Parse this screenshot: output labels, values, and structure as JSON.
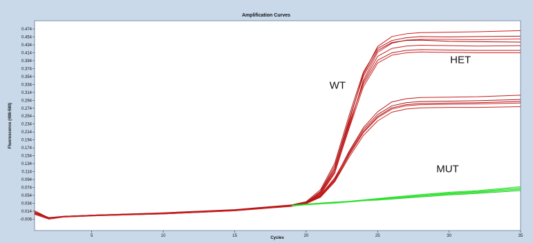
{
  "chart_data": {
    "type": "line",
    "title": "Amplification Curves",
    "xlabel": "Cycles",
    "ylabel": "Fluorescence (498-580)",
    "xlim": [
      1,
      35
    ],
    "ylim": [
      -0.035,
      0.495
    ],
    "x_ticks": [
      5,
      10,
      15,
      20,
      25,
      30,
      35
    ],
    "y_ticks": [
      "-0.006",
      "0.014",
      "0.034",
      "0.054",
      "0.074",
      "0.094",
      "0.114",
      "0.134",
      "0.154",
      "0.174",
      "0.194",
      "0.214",
      "0.234",
      "0.254",
      "0.274",
      "0.294",
      "0.314",
      "0.334",
      "0.354",
      "0.374",
      "0.394",
      "0.414",
      "0.434",
      "0.454",
      "0.474"
    ],
    "grid": false,
    "legend": "none",
    "annotations": [
      {
        "text": "WT",
        "x": 22.2,
        "y": 0.323
      },
      {
        "text": "HET",
        "x": 30.8,
        "y": 0.388
      },
      {
        "text": "MUT",
        "x": 29.9,
        "y": 0.112
      }
    ],
    "series": [
      {
        "group": "WT",
        "color": "#cc1a1a",
        "values": [
          [
            1,
            0.008
          ],
          [
            2,
            -0.004
          ],
          [
            3,
            0.0
          ],
          [
            5,
            0.003
          ],
          [
            10,
            0.008
          ],
          [
            15,
            0.016
          ],
          [
            19,
            0.028
          ],
          [
            20,
            0.034
          ],
          [
            21,
            0.06
          ],
          [
            22,
            0.12
          ],
          [
            23,
            0.24
          ],
          [
            24,
            0.36
          ],
          [
            25,
            0.43
          ],
          [
            26,
            0.455
          ],
          [
            27,
            0.462
          ],
          [
            28,
            0.465
          ],
          [
            30,
            0.466
          ],
          [
            32,
            0.467
          ],
          [
            35,
            0.47
          ]
        ]
      },
      {
        "group": "WT",
        "color": "#b31212",
        "values": [
          [
            1,
            0.012
          ],
          [
            2,
            -0.002
          ],
          [
            3,
            0.001
          ],
          [
            5,
            0.004
          ],
          [
            10,
            0.01
          ],
          [
            15,
            0.018
          ],
          [
            19,
            0.03
          ],
          [
            20,
            0.038
          ],
          [
            21,
            0.068
          ],
          [
            22,
            0.135
          ],
          [
            23,
            0.255
          ],
          [
            24,
            0.365
          ],
          [
            25,
            0.425
          ],
          [
            26,
            0.445
          ],
          [
            27,
            0.452
          ],
          [
            28,
            0.455
          ],
          [
            30,
            0.454
          ],
          [
            32,
            0.455
          ],
          [
            35,
            0.456
          ]
        ]
      },
      {
        "group": "WT",
        "color": "#d42a2a",
        "values": [
          [
            1,
            0.006
          ],
          [
            2,
            -0.006
          ],
          [
            3,
            -0.001
          ],
          [
            5,
            0.002
          ],
          [
            10,
            0.007
          ],
          [
            15,
            0.015
          ],
          [
            19,
            0.026
          ],
          [
            20,
            0.032
          ],
          [
            21,
            0.055
          ],
          [
            22,
            0.11
          ],
          [
            23,
            0.225
          ],
          [
            24,
            0.345
          ],
          [
            25,
            0.415
          ],
          [
            26,
            0.438
          ],
          [
            27,
            0.446
          ],
          [
            28,
            0.448
          ],
          [
            30,
            0.448
          ],
          [
            32,
            0.447
          ],
          [
            35,
            0.449
          ]
        ]
      },
      {
        "group": "WT",
        "color": "#a01010",
        "values": [
          [
            1,
            0.015
          ],
          [
            2,
            -0.003
          ],
          [
            3,
            0.0
          ],
          [
            5,
            0.003
          ],
          [
            10,
            0.009
          ],
          [
            15,
            0.017
          ],
          [
            19,
            0.029
          ],
          [
            20,
            0.036
          ],
          [
            21,
            0.064
          ],
          [
            22,
            0.128
          ],
          [
            23,
            0.245
          ],
          [
            24,
            0.355
          ],
          [
            25,
            0.42
          ],
          [
            26,
            0.44
          ],
          [
            27,
            0.445
          ],
          [
            28,
            0.446
          ],
          [
            30,
            0.443
          ],
          [
            32,
            0.442
          ],
          [
            35,
            0.441
          ]
        ]
      },
      {
        "group": "WT",
        "color": "#c41f1f",
        "values": [
          [
            1,
            0.01
          ],
          [
            2,
            -0.005
          ],
          [
            3,
            0.0
          ],
          [
            5,
            0.003
          ],
          [
            10,
            0.008
          ],
          [
            15,
            0.016
          ],
          [
            19,
            0.027
          ],
          [
            20,
            0.033
          ],
          [
            21,
            0.058
          ],
          [
            22,
            0.115
          ],
          [
            23,
            0.23
          ],
          [
            24,
            0.34
          ],
          [
            25,
            0.405
          ],
          [
            26,
            0.425
          ],
          [
            27,
            0.431
          ],
          [
            28,
            0.433
          ],
          [
            30,
            0.432
          ],
          [
            32,
            0.431
          ],
          [
            35,
            0.432
          ]
        ]
      },
      {
        "group": "WT",
        "color": "#b81818",
        "values": [
          [
            1,
            0.009
          ],
          [
            2,
            -0.004
          ],
          [
            3,
            0.001
          ],
          [
            5,
            0.004
          ],
          [
            10,
            0.009
          ],
          [
            15,
            0.017
          ],
          [
            19,
            0.028
          ],
          [
            20,
            0.035
          ],
          [
            21,
            0.062
          ],
          [
            22,
            0.122
          ],
          [
            23,
            0.235
          ],
          [
            24,
            0.335
          ],
          [
            25,
            0.395
          ],
          [
            26,
            0.414
          ],
          [
            27,
            0.42
          ],
          [
            28,
            0.422
          ],
          [
            30,
            0.421
          ],
          [
            32,
            0.42
          ],
          [
            35,
            0.42
          ]
        ]
      },
      {
        "group": "WT",
        "color": "#cf2222",
        "values": [
          [
            1,
            0.007
          ],
          [
            2,
            -0.006
          ],
          [
            3,
            -0.001
          ],
          [
            5,
            0.002
          ],
          [
            10,
            0.007
          ],
          [
            15,
            0.015
          ],
          [
            19,
            0.027
          ],
          [
            20,
            0.033
          ],
          [
            21,
            0.057
          ],
          [
            22,
            0.112
          ],
          [
            23,
            0.222
          ],
          [
            24,
            0.328
          ],
          [
            25,
            0.388
          ],
          [
            26,
            0.408
          ],
          [
            27,
            0.414
          ],
          [
            28,
            0.416
          ],
          [
            30,
            0.415
          ],
          [
            32,
            0.414
          ],
          [
            35,
            0.414
          ]
        ]
      },
      {
        "group": "HET",
        "color": "#c01a1a",
        "values": [
          [
            1,
            0.01
          ],
          [
            2,
            -0.004
          ],
          [
            3,
            0.0
          ],
          [
            5,
            0.003
          ],
          [
            10,
            0.008
          ],
          [
            15,
            0.016
          ],
          [
            19,
            0.028
          ],
          [
            20,
            0.034
          ],
          [
            21,
            0.052
          ],
          [
            22,
            0.095
          ],
          [
            23,
            0.165
          ],
          [
            24,
            0.225
          ],
          [
            25,
            0.265
          ],
          [
            26,
            0.29
          ],
          [
            27,
            0.298
          ],
          [
            28,
            0.301
          ],
          [
            30,
            0.302
          ],
          [
            32,
            0.303
          ],
          [
            35,
            0.307
          ]
        ]
      },
      {
        "group": "HET",
        "color": "#a81414",
        "values": [
          [
            1,
            0.012
          ],
          [
            2,
            -0.003
          ],
          [
            3,
            0.001
          ],
          [
            5,
            0.004
          ],
          [
            10,
            0.009
          ],
          [
            15,
            0.017
          ],
          [
            19,
            0.029
          ],
          [
            20,
            0.035
          ],
          [
            21,
            0.054
          ],
          [
            22,
            0.098
          ],
          [
            23,
            0.162
          ],
          [
            24,
            0.22
          ],
          [
            25,
            0.258
          ],
          [
            26,
            0.28
          ],
          [
            27,
            0.288
          ],
          [
            28,
            0.291
          ],
          [
            30,
            0.292
          ],
          [
            32,
            0.293
          ],
          [
            35,
            0.296
          ]
        ]
      },
      {
        "group": "HET",
        "color": "#d02828",
        "values": [
          [
            1,
            0.008
          ],
          [
            2,
            -0.005
          ],
          [
            3,
            0.0
          ],
          [
            5,
            0.003
          ],
          [
            10,
            0.008
          ],
          [
            15,
            0.016
          ],
          [
            19,
            0.027
          ],
          [
            20,
            0.033
          ],
          [
            21,
            0.05
          ],
          [
            22,
            0.09
          ],
          [
            23,
            0.155
          ],
          [
            24,
            0.212
          ],
          [
            25,
            0.25
          ],
          [
            26,
            0.272
          ],
          [
            27,
            0.28
          ],
          [
            28,
            0.283
          ],
          [
            30,
            0.284
          ],
          [
            32,
            0.285
          ],
          [
            35,
            0.287
          ]
        ]
      },
      {
        "group": "HET",
        "color": "#b51616",
        "values": [
          [
            1,
            0.011
          ],
          [
            2,
            -0.004
          ],
          [
            3,
            0.0
          ],
          [
            5,
            0.003
          ],
          [
            10,
            0.008
          ],
          [
            15,
            0.016
          ],
          [
            19,
            0.028
          ],
          [
            20,
            0.034
          ],
          [
            21,
            0.051
          ],
          [
            22,
            0.092
          ],
          [
            23,
            0.158
          ],
          [
            24,
            0.215
          ],
          [
            25,
            0.253
          ],
          [
            26,
            0.275
          ],
          [
            27,
            0.283
          ],
          [
            28,
            0.286
          ],
          [
            30,
            0.287
          ],
          [
            32,
            0.288
          ],
          [
            35,
            0.291
          ]
        ]
      },
      {
        "group": "HET",
        "color": "#c82020",
        "values": [
          [
            1,
            0.009
          ],
          [
            2,
            -0.005
          ],
          [
            3,
            0.0
          ],
          [
            5,
            0.003
          ],
          [
            10,
            0.008
          ],
          [
            15,
            0.016
          ],
          [
            19,
            0.027
          ],
          [
            20,
            0.033
          ],
          [
            21,
            0.049
          ],
          [
            22,
            0.088
          ],
          [
            23,
            0.15
          ],
          [
            24,
            0.205
          ],
          [
            25,
            0.242
          ],
          [
            26,
            0.264
          ],
          [
            27,
            0.272
          ],
          [
            28,
            0.275
          ],
          [
            30,
            0.276
          ],
          [
            32,
            0.276
          ],
          [
            35,
            0.278
          ]
        ]
      },
      {
        "group": "MUT",
        "color": "#22dd22",
        "values": [
          [
            19,
            0.028
          ],
          [
            20,
            0.031
          ],
          [
            22,
            0.036
          ],
          [
            25,
            0.044
          ],
          [
            28,
            0.053
          ],
          [
            30,
            0.058
          ],
          [
            32,
            0.062
          ],
          [
            35,
            0.07
          ]
        ]
      },
      {
        "group": "MUT",
        "color": "#33e633",
        "values": [
          [
            19,
            0.027
          ],
          [
            20,
            0.03
          ],
          [
            22,
            0.035
          ],
          [
            25,
            0.046
          ],
          [
            28,
            0.056
          ],
          [
            30,
            0.062
          ],
          [
            32,
            0.066
          ],
          [
            35,
            0.076
          ]
        ]
      },
      {
        "group": "MUT",
        "color": "#19c819",
        "values": [
          [
            19,
            0.029
          ],
          [
            20,
            0.032
          ],
          [
            22,
            0.037
          ],
          [
            25,
            0.042
          ],
          [
            28,
            0.05
          ],
          [
            30,
            0.055
          ],
          [
            32,
            0.059
          ],
          [
            35,
            0.066
          ]
        ]
      },
      {
        "group": "MUT",
        "color": "#2ad52a",
        "values": [
          [
            19,
            0.028
          ],
          [
            20,
            0.031
          ],
          [
            22,
            0.036
          ],
          [
            25,
            0.045
          ],
          [
            28,
            0.054
          ],
          [
            30,
            0.06
          ],
          [
            32,
            0.064
          ],
          [
            35,
            0.073
          ]
        ]
      },
      {
        "group": "MUT",
        "color": "#40ee40",
        "values": [
          [
            19,
            0.027
          ],
          [
            20,
            0.03
          ],
          [
            22,
            0.034
          ],
          [
            25,
            0.043
          ],
          [
            28,
            0.052
          ],
          [
            30,
            0.057
          ],
          [
            32,
            0.061
          ],
          [
            35,
            0.069
          ]
        ]
      }
    ]
  }
}
